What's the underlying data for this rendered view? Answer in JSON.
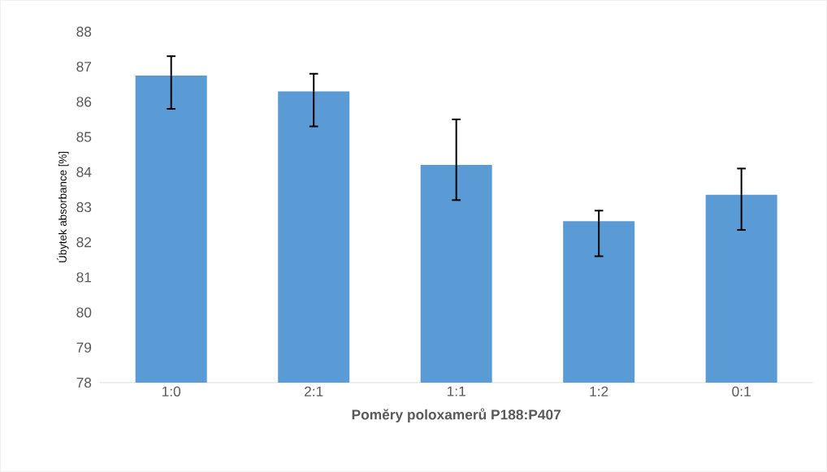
{
  "chart_data": {
    "type": "bar",
    "xlabel": "Poměry poloxamerů P188:P407",
    "ylabel": "Úbytek absorbance [%]",
    "categories": [
      "1:0",
      "2:1",
      "1:1",
      "1:2",
      "0:1"
    ],
    "values": [
      86.75,
      86.3,
      84.2,
      82.6,
      83.35
    ],
    "errors": [
      [
        85.8,
        87.3
      ],
      [
        85.3,
        86.8
      ],
      [
        83.2,
        85.5
      ],
      [
        81.6,
        82.9
      ],
      [
        82.35,
        84.1
      ]
    ],
    "color": "#5b9bd5",
    "ylim": [
      78,
      88
    ],
    "yticks": [
      78,
      79,
      80,
      81,
      82,
      83,
      84,
      85,
      86,
      87,
      88
    ],
    "grid": false
  }
}
